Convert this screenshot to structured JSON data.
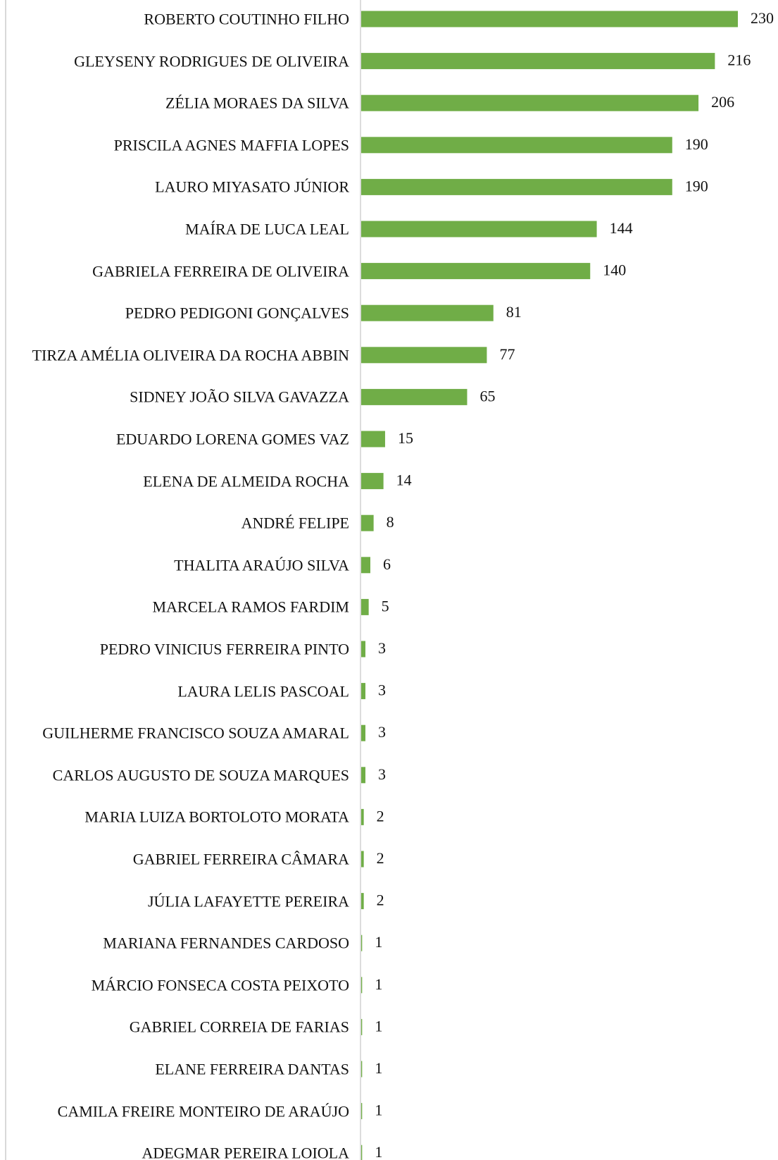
{
  "chart_data": {
    "type": "bar",
    "orientation": "horizontal",
    "color": "#70ad47",
    "categories": [
      "ROBERTO COUTINHO FILHO",
      "GLEYSENY RODRIGUES DE OLIVEIRA",
      "ZÉLIA MORAES DA SILVA",
      "PRISCILA AGNES MAFFIA LOPES",
      "LAURO MIYASATO JÚNIOR",
      "MAÍRA DE LUCA LEAL",
      "GABRIELA FERREIRA DE OLIVEIRA",
      "PEDRO PEDIGONI GONÇALVES",
      "TIRZA AMÉLIA OLIVEIRA DA ROCHA ABBIN",
      "SIDNEY JOÃO SILVA GAVAZZA",
      "EDUARDO LORENA GOMES VAZ",
      "ELENA DE ALMEIDA ROCHA",
      "ANDRÉ FELIPE",
      "THALITA ARAÚJO SILVA",
      "MARCELA RAMOS FARDIM",
      "PEDRO VINICIUS FERREIRA PINTO",
      "LAURA LELIS PASCOAL",
      "GUILHERME FRANCISCO SOUZA AMARAL",
      "CARLOS AUGUSTO DE SOUZA MARQUES",
      "MARIA LUIZA BORTOLOTO MORATA",
      "GABRIEL FERREIRA CÂMARA",
      "JÚLIA LAFAYETTE PEREIRA",
      "MARIANA FERNANDES CARDOSO",
      "MÁRCIO FONSECA COSTA PEIXOTO",
      "GABRIEL CORREIA DE FARIAS",
      "ELANE FERREIRA DANTAS",
      "CAMILA FREIRE MONTEIRO DE ARAÚJO",
      "ADEGMAR PEREIRA LOIOLA"
    ],
    "values": [
      230,
      216,
      206,
      190,
      190,
      144,
      140,
      81,
      77,
      65,
      15,
      14,
      8,
      6,
      5,
      3,
      3,
      3,
      3,
      2,
      2,
      2,
      1,
      1,
      1,
      1,
      1,
      1
    ]
  }
}
